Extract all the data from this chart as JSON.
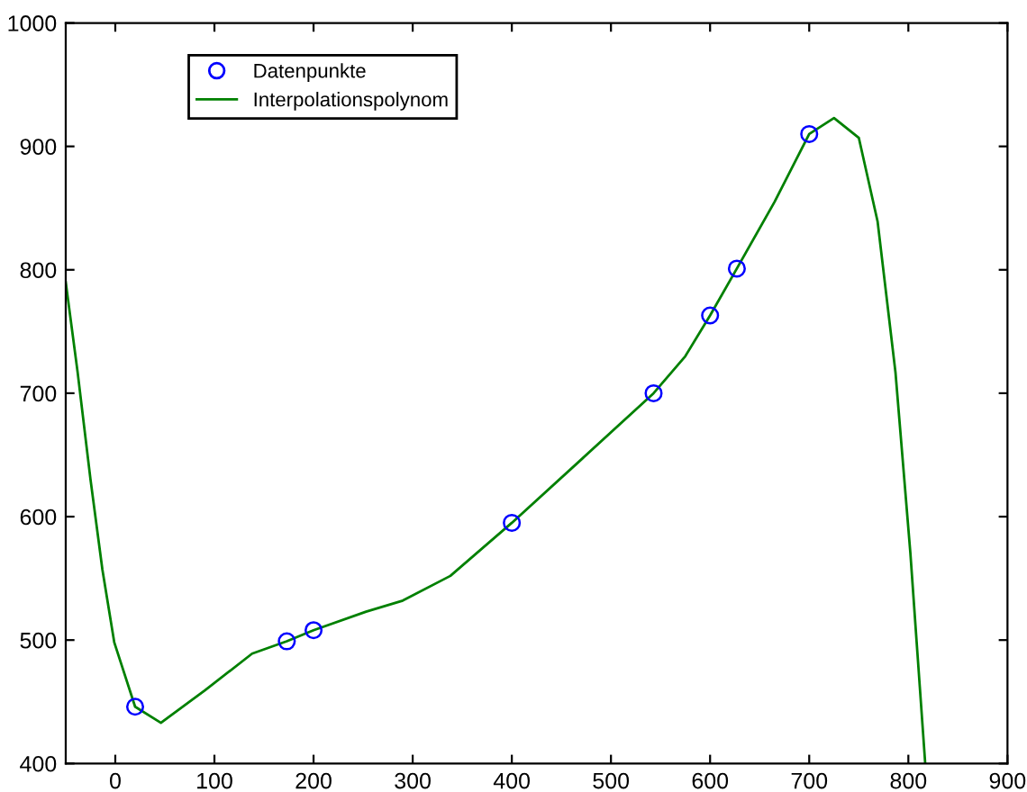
{
  "chart_data": {
    "type": "scatter",
    "xlim": [
      -50,
      900
    ],
    "ylim": [
      400,
      1000
    ],
    "xticks": [
      0,
      100,
      200,
      300,
      400,
      500,
      600,
      700,
      800,
      900
    ],
    "yticks": [
      400,
      500,
      600,
      700,
      800,
      900,
      1000
    ],
    "grid": false,
    "legend": "top left",
    "series": [
      {
        "name": "Datenpunkte",
        "marker": "circle",
        "color": "#0000ff",
        "x": [
          20,
          173,
          200,
          400,
          543,
          600,
          627,
          700
        ],
        "values": [
          446,
          499,
          508,
          595,
          700,
          763,
          801,
          910
        ]
      },
      {
        "name": "Interpolationspolynom",
        "type": "line",
        "marker": "none",
        "color": "#008000",
        "x": [
          -50,
          -38,
          -25,
          -13,
          -1,
          20,
          46,
          90,
          138,
          173,
          200,
          253,
          290,
          338,
          400,
          471,
          543,
          575,
          600,
          627,
          665,
          700,
          725,
          750,
          769,
          787,
          802,
          817
        ],
        "values": [
          790,
          717,
          630,
          557,
          498,
          446,
          433,
          459,
          489,
          499,
          508,
          523,
          532,
          552,
          595,
          647,
          700,
          730,
          763,
          801,
          855,
          910,
          923,
          907,
          839,
          717,
          571,
          400
        ]
      }
    ]
  }
}
